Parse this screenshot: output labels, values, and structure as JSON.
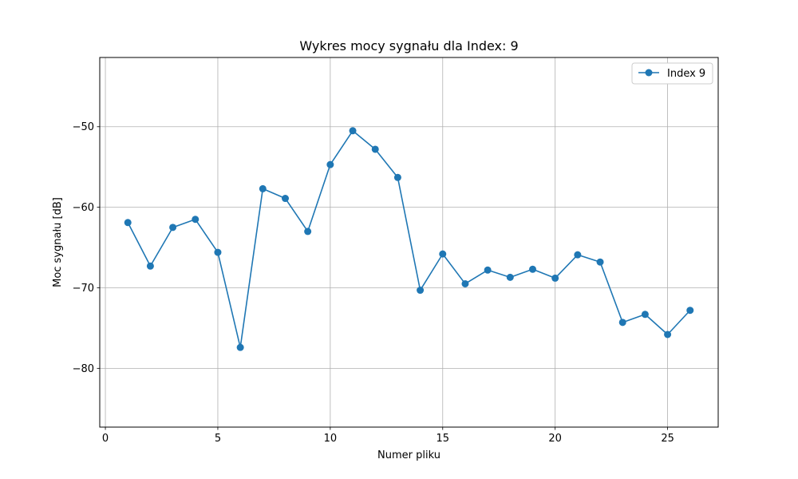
{
  "chart_data": {
    "type": "line",
    "title": "Wykres mocy sygnału dla Index: 9",
    "xlabel": "Numer pliku",
    "ylabel": "Moc sygnału [dB]",
    "xlim": [
      -0.25,
      27.25
    ],
    "ylim": [
      -87.3,
      -41.4
    ],
    "xticks": [
      0,
      5,
      10,
      15,
      20,
      25
    ],
    "yticks": [
      -80,
      -70,
      -60,
      -50
    ],
    "ytick_labels": [
      "−80",
      "−70",
      "−60",
      "−50"
    ],
    "grid": true,
    "legend_position": "top-right",
    "series": [
      {
        "name": "Index 9",
        "color": "#1f77b4",
        "marker": "circle",
        "x": [
          1,
          2,
          3,
          4,
          5,
          6,
          7,
          8,
          9,
          10,
          11,
          12,
          13,
          14,
          15,
          16,
          17,
          18,
          19,
          20,
          21,
          22,
          23,
          24,
          25,
          26
        ],
        "y": [
          -61.9,
          -67.3,
          -62.5,
          -61.5,
          -65.6,
          -77.4,
          -57.7,
          -58.9,
          -63.0,
          -54.7,
          -50.5,
          -52.8,
          -56.3,
          -70.3,
          -65.8,
          -69.5,
          -67.8,
          -68.7,
          -67.7,
          -68.8,
          -65.9,
          -66.8,
          -74.3,
          -73.3,
          -75.8,
          -72.8
        ]
      }
    ]
  }
}
